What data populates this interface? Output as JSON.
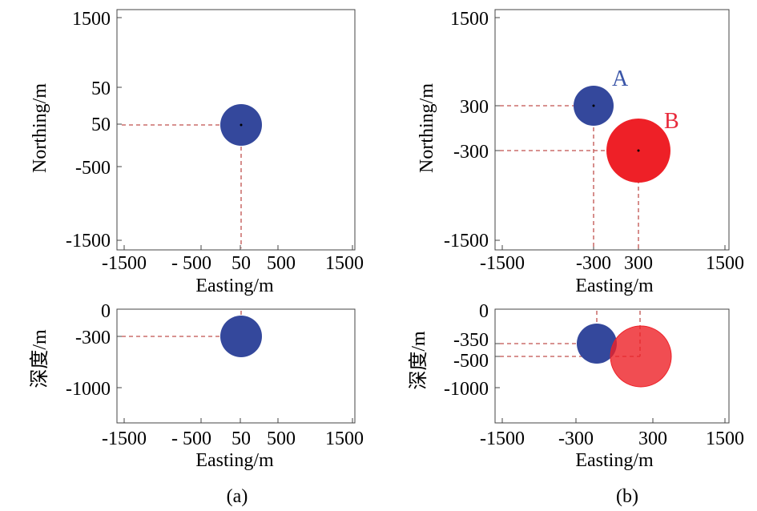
{
  "figure": {
    "caption_a": "(a)",
    "caption_b": "(b)"
  },
  "panels": {
    "a_plan": {
      "xlabel": "Easting/m",
      "ylabel": "Northing/m",
      "xticks": [
        "-1500",
        "- 500",
        "50",
        "500",
        "1500"
      ],
      "yticks": [
        "1500",
        "50",
        "50",
        "-500",
        "-1500"
      ]
    },
    "a_depth": {
      "xlabel": "Easting/m",
      "ylabel": "深度/m",
      "xticks": [
        "-1500",
        "- 500",
        "50",
        "500",
        "1500"
      ],
      "yticks": [
        "0",
        "-300",
        "-1000"
      ]
    },
    "b_plan": {
      "xlabel": "Easting/m",
      "ylabel": "Northing/m",
      "xticks": [
        "-1500",
        "-300",
        "300",
        "1500"
      ],
      "yticks": [
        "1500",
        "300",
        "-300",
        "-1500"
      ]
    },
    "b_depth": {
      "xlabel": "Easting/m",
      "ylabel": "深度/m",
      "xticks": [
        "-1500",
        "-300",
        "300",
        "1500"
      ],
      "yticks": [
        "0",
        "-350",
        "-500",
        "-1000"
      ]
    }
  },
  "bodies": {
    "a": {
      "label": "",
      "color": "#34489c",
      "easting": 50,
      "northing": 50,
      "depth": -300
    },
    "b_A": {
      "label": "A",
      "color": "#34489c",
      "easting": -300,
      "northing": 300,
      "depth": -350
    },
    "b_B": {
      "label": "B",
      "color": "#ee2027",
      "easting": 300,
      "northing": -300,
      "depth": -500
    }
  },
  "colors": {
    "guide_line": "#c0504d",
    "label_A": "#3a55a8",
    "label_B": "#e8293a"
  }
}
